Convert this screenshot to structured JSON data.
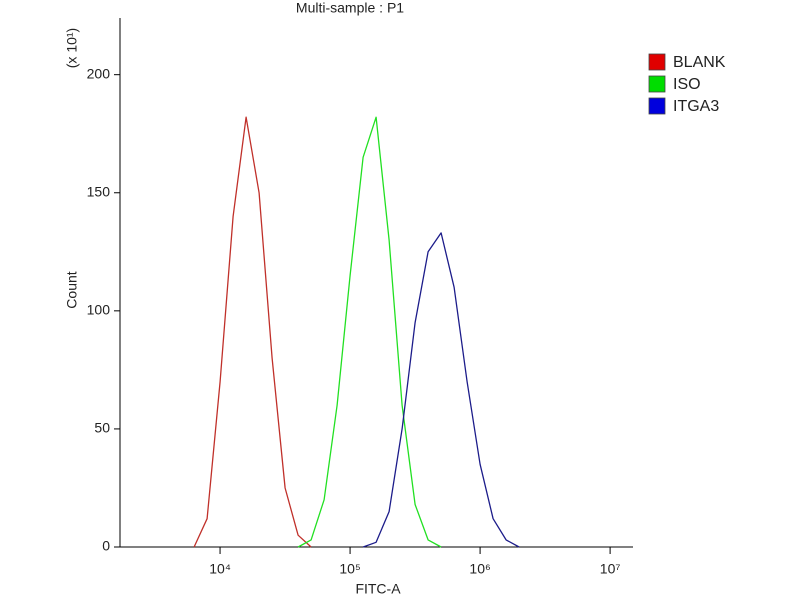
{
  "chart_data": {
    "type": "line",
    "title": "Multi-sample : P1",
    "x_label": "FITC-A",
    "y_label": "Count",
    "y_multiplier": "(x 10¹)",
    "x_scale": "log",
    "legend": "top-right",
    "xlim": [
      1700,
      15000000
    ],
    "ylim": [
      0,
      224
    ],
    "xticks": [
      {
        "value": 10000,
        "label": "10⁴"
      },
      {
        "value": 100000,
        "label": "10⁵"
      },
      {
        "value": 1000000,
        "label": "10⁶"
      },
      {
        "value": 10000000,
        "label": "10⁷"
      }
    ],
    "yticks": [
      0,
      50,
      100,
      150,
      200
    ],
    "x": [
      6310,
      7943,
      10000,
      12589,
      15849,
      19953,
      25119,
      31623,
      39811,
      50119,
      63096,
      79433,
      100000,
      125893,
      158489,
      199526,
      251189,
      316228,
      398107,
      501187,
      630957,
      794328,
      1000000,
      1258925,
      1584893,
      1995262,
      2511886,
      3162278
    ],
    "series": [
      {
        "name": "BLANK",
        "color": "#c0302a",
        "legend_color": "#e00000",
        "values": [
          0,
          12,
          70,
          140,
          182,
          150,
          80,
          25,
          5,
          0,
          null,
          null,
          null,
          null,
          null,
          null,
          null,
          null,
          null,
          null,
          null,
          null,
          null,
          null,
          null,
          null,
          null,
          null
        ]
      },
      {
        "name": "ISO",
        "color": "#22e022",
        "legend_color": "#00dd00",
        "values": [
          null,
          null,
          null,
          null,
          null,
          null,
          null,
          null,
          0,
          3,
          20,
          60,
          115,
          165,
          182,
          130,
          60,
          18,
          3,
          0,
          null,
          null,
          null,
          null,
          null,
          null,
          null,
          null
        ]
      },
      {
        "name": "ITGA3",
        "color": "#1c1c8a",
        "legend_color": "#0000dd",
        "values": [
          null,
          null,
          null,
          null,
          null,
          null,
          null,
          null,
          null,
          null,
          null,
          null,
          null,
          0,
          2,
          15,
          50,
          95,
          125,
          133,
          110,
          70,
          35,
          12,
          3,
          0,
          null,
          null
        ]
      }
    ]
  }
}
